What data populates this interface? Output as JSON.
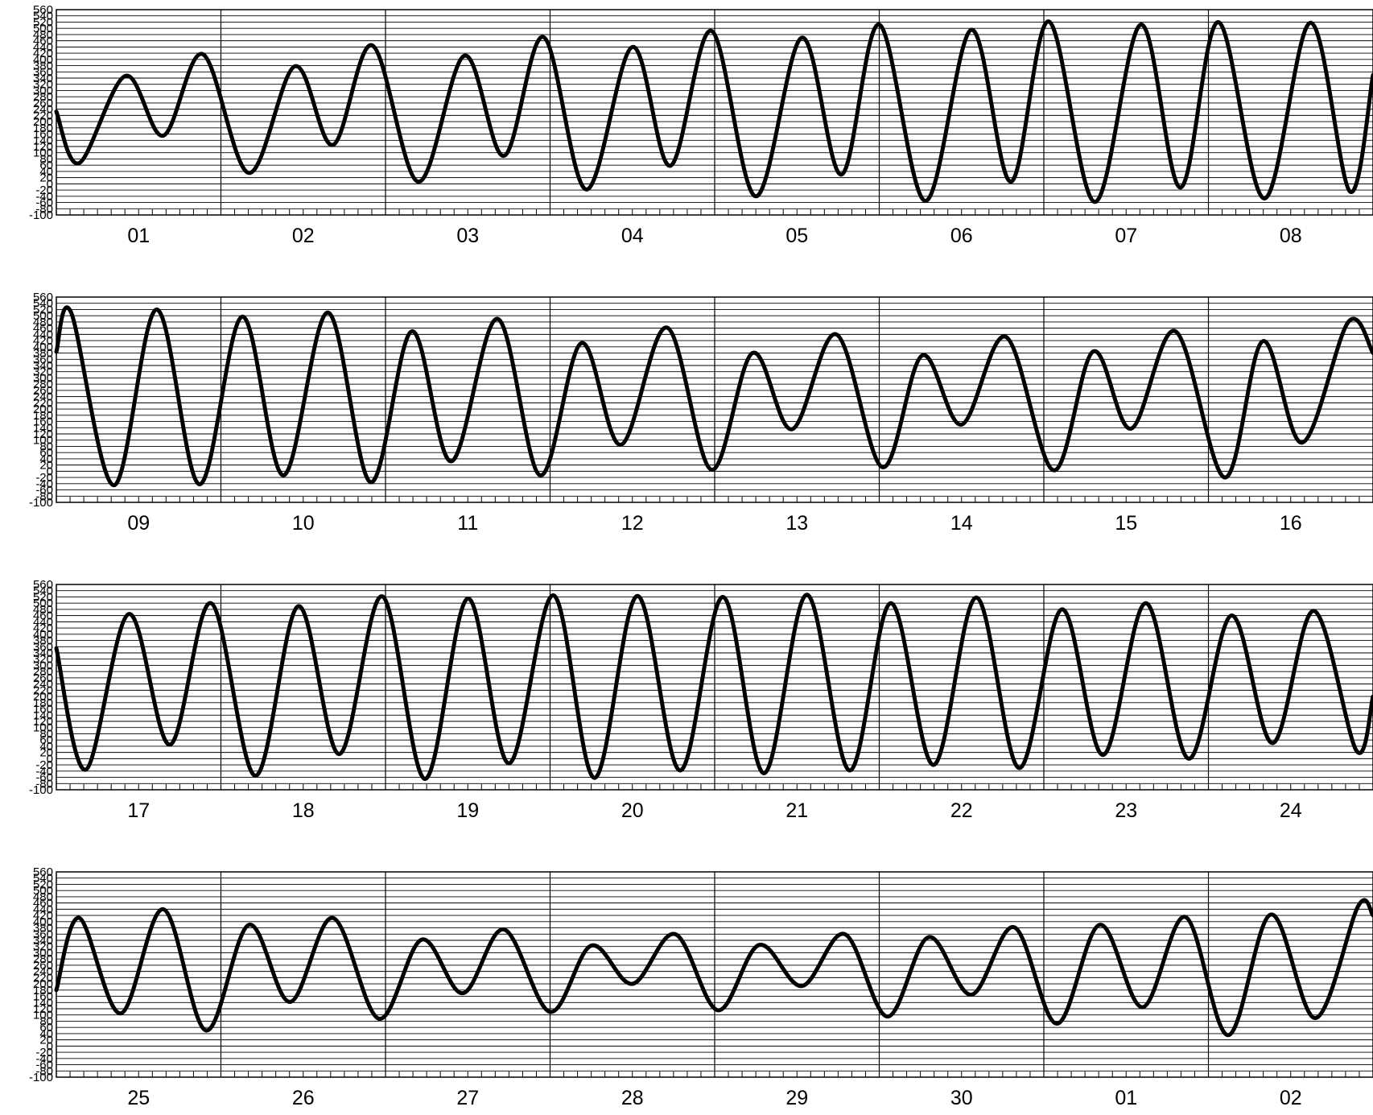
{
  "chart_data": {
    "type": "line",
    "title": "",
    "xlabel": "",
    "ylabel": "",
    "ylim": [
      -100,
      560
    ],
    "y_ticks": [
      -100,
      -80,
      -60,
      -40,
      -20,
      0,
      20,
      40,
      60,
      80,
      100,
      120,
      140,
      160,
      180,
      200,
      220,
      240,
      260,
      280,
      300,
      320,
      340,
      360,
      380,
      400,
      420,
      440,
      460,
      480,
      500,
      520,
      540,
      560
    ],
    "grid": true,
    "grid_style": "horizontal lines every 20 units, vertical line at each day boundary",
    "line_color": "#000000",
    "panels": [
      {
        "day_labels": [
          "01",
          "02",
          "03",
          "04",
          "05",
          "06",
          "07",
          "08"
        ],
        "series": [
          {
            "x": 0.0,
            "y": 232
          },
          {
            "x": 0.14,
            "y": 67
          },
          {
            "x": 0.42,
            "y": 347
          },
          {
            "x": 0.65,
            "y": 155
          },
          {
            "x": 0.89,
            "y": 417
          },
          {
            "x": 1.17,
            "y": 35
          },
          {
            "x": 1.45,
            "y": 378
          },
          {
            "x": 1.68,
            "y": 125
          },
          {
            "x": 1.92,
            "y": 445
          },
          {
            "x": 2.2,
            "y": 7
          },
          {
            "x": 2.48,
            "y": 412
          },
          {
            "x": 2.72,
            "y": 90
          },
          {
            "x": 2.96,
            "y": 472
          },
          {
            "x": 3.22,
            "y": -18
          },
          {
            "x": 3.5,
            "y": 440
          },
          {
            "x": 3.73,
            "y": 58
          },
          {
            "x": 3.98,
            "y": 492
          },
          {
            "x": 4.25,
            "y": -40
          },
          {
            "x": 4.53,
            "y": 470
          },
          {
            "x": 4.77,
            "y": 30
          },
          {
            "x": 5.0,
            "y": 512
          },
          {
            "x": 5.28,
            "y": -55
          },
          {
            "x": 5.56,
            "y": 495
          },
          {
            "x": 5.8,
            "y": 7
          },
          {
            "x": 6.03,
            "y": 522
          },
          {
            "x": 6.31,
            "y": -58
          },
          {
            "x": 6.59,
            "y": 512
          },
          {
            "x": 6.83,
            "y": -12
          },
          {
            "x": 7.06,
            "y": 520
          },
          {
            "x": 7.34,
            "y": -47
          },
          {
            "x": 7.62,
            "y": 518
          },
          {
            "x": 7.86,
            "y": -25
          },
          {
            "x": 8.0,
            "y": 350
          }
        ]
      },
      {
        "day_labels": [
          "09",
          "10",
          "11",
          "12",
          "13",
          "14",
          "15",
          "16"
        ],
        "series": [
          {
            "x": 0.0,
            "y": 384
          },
          {
            "x": 0.09,
            "y": 510
          },
          {
            "x": 0.35,
            "y": -45
          },
          {
            "x": 0.61,
            "y": 520
          },
          {
            "x": 0.87,
            "y": -42
          },
          {
            "x": 1.13,
            "y": 497
          },
          {
            "x": 1.38,
            "y": -13
          },
          {
            "x": 1.65,
            "y": 510
          },
          {
            "x": 1.91,
            "y": -35
          },
          {
            "x": 2.16,
            "y": 450
          },
          {
            "x": 2.4,
            "y": 32
          },
          {
            "x": 2.68,
            "y": 490
          },
          {
            "x": 2.94,
            "y": -13
          },
          {
            "x": 3.19,
            "y": 412
          },
          {
            "x": 3.43,
            "y": 85
          },
          {
            "x": 3.71,
            "y": 462
          },
          {
            "x": 3.98,
            "y": 5
          },
          {
            "x": 4.23,
            "y": 380
          },
          {
            "x": 4.47,
            "y": 135
          },
          {
            "x": 4.74,
            "y": 440
          },
          {
            "x": 5.02,
            "y": 13
          },
          {
            "x": 5.26,
            "y": 372
          },
          {
            "x": 5.5,
            "y": 150
          },
          {
            "x": 5.77,
            "y": 432
          },
          {
            "x": 6.06,
            "y": 3
          },
          {
            "x": 6.3,
            "y": 385
          },
          {
            "x": 6.53,
            "y": 137
          },
          {
            "x": 6.8,
            "y": 450
          },
          {
            "x": 7.1,
            "y": -20
          },
          {
            "x": 7.33,
            "y": 418
          },
          {
            "x": 7.57,
            "y": 92
          },
          {
            "x": 7.85,
            "y": 480
          },
          {
            "x": 8.0,
            "y": 380
          }
        ]
      },
      {
        "day_labels": [
          "17",
          "18",
          "19",
          "20",
          "21",
          "22",
          "23",
          "24"
        ],
        "series": [
          {
            "x": 0.0,
            "y": 355
          },
          {
            "x": 0.18,
            "y": -35
          },
          {
            "x": 0.44,
            "y": 465
          },
          {
            "x": 0.69,
            "y": 45
          },
          {
            "x": 0.94,
            "y": 500
          },
          {
            "x": 1.21,
            "y": -55
          },
          {
            "x": 1.47,
            "y": 490
          },
          {
            "x": 1.72,
            "y": 15
          },
          {
            "x": 1.98,
            "y": 522
          },
          {
            "x": 2.24,
            "y": -65
          },
          {
            "x": 2.5,
            "y": 515
          },
          {
            "x": 2.75,
            "y": -15
          },
          {
            "x": 3.02,
            "y": 525
          },
          {
            "x": 3.27,
            "y": -62
          },
          {
            "x": 3.53,
            "y": 523
          },
          {
            "x": 3.79,
            "y": -38
          },
          {
            "x": 4.05,
            "y": 520
          },
          {
            "x": 4.3,
            "y": -47
          },
          {
            "x": 4.56,
            "y": 527
          },
          {
            "x": 4.82,
            "y": -38
          },
          {
            "x": 5.07,
            "y": 500
          },
          {
            "x": 5.33,
            "y": -20
          },
          {
            "x": 5.59,
            "y": 518
          },
          {
            "x": 5.85,
            "y": -30
          },
          {
            "x": 6.11,
            "y": 480
          },
          {
            "x": 6.36,
            "y": 12
          },
          {
            "x": 6.62,
            "y": 500
          },
          {
            "x": 6.88,
            "y": 0
          },
          {
            "x": 7.14,
            "y": 460
          },
          {
            "x": 7.39,
            "y": 50
          },
          {
            "x": 7.64,
            "y": 475
          },
          {
            "x": 7.9,
            "y": 25
          },
          {
            "x": 8.0,
            "y": 200
          }
        ]
      },
      {
        "day_labels": [
          "25",
          "26",
          "27",
          "28",
          "29",
          "30",
          "01",
          "02"
        ],
        "series": [
          {
            "x": 0.0,
            "y": 180
          },
          {
            "x": 0.14,
            "y": 412
          },
          {
            "x": 0.39,
            "y": 105
          },
          {
            "x": 0.65,
            "y": 440
          },
          {
            "x": 0.91,
            "y": 50
          },
          {
            "x": 1.17,
            "y": 390
          },
          {
            "x": 1.42,
            "y": 142
          },
          {
            "x": 1.68,
            "y": 412
          },
          {
            "x": 1.96,
            "y": 88
          },
          {
            "x": 2.22,
            "y": 342
          },
          {
            "x": 2.47,
            "y": 170
          },
          {
            "x": 2.72,
            "y": 375
          },
          {
            "x": 3.0,
            "y": 110
          },
          {
            "x": 3.25,
            "y": 323
          },
          {
            "x": 3.5,
            "y": 200
          },
          {
            "x": 3.76,
            "y": 360
          },
          {
            "x": 4.02,
            "y": 115
          },
          {
            "x": 4.27,
            "y": 325
          },
          {
            "x": 4.53,
            "y": 193
          },
          {
            "x": 4.79,
            "y": 360
          },
          {
            "x": 5.05,
            "y": 95
          },
          {
            "x": 5.3,
            "y": 350
          },
          {
            "x": 5.56,
            "y": 165
          },
          {
            "x": 5.82,
            "y": 382
          },
          {
            "x": 6.08,
            "y": 72
          },
          {
            "x": 6.34,
            "y": 390
          },
          {
            "x": 6.6,
            "y": 125
          },
          {
            "x": 6.86,
            "y": 415
          },
          {
            "x": 7.12,
            "y": 35
          },
          {
            "x": 7.38,
            "y": 423
          },
          {
            "x": 7.65,
            "y": 90
          },
          {
            "x": 7.91,
            "y": 450
          },
          {
            "x": 8.0,
            "y": 420
          }
        ]
      }
    ]
  }
}
